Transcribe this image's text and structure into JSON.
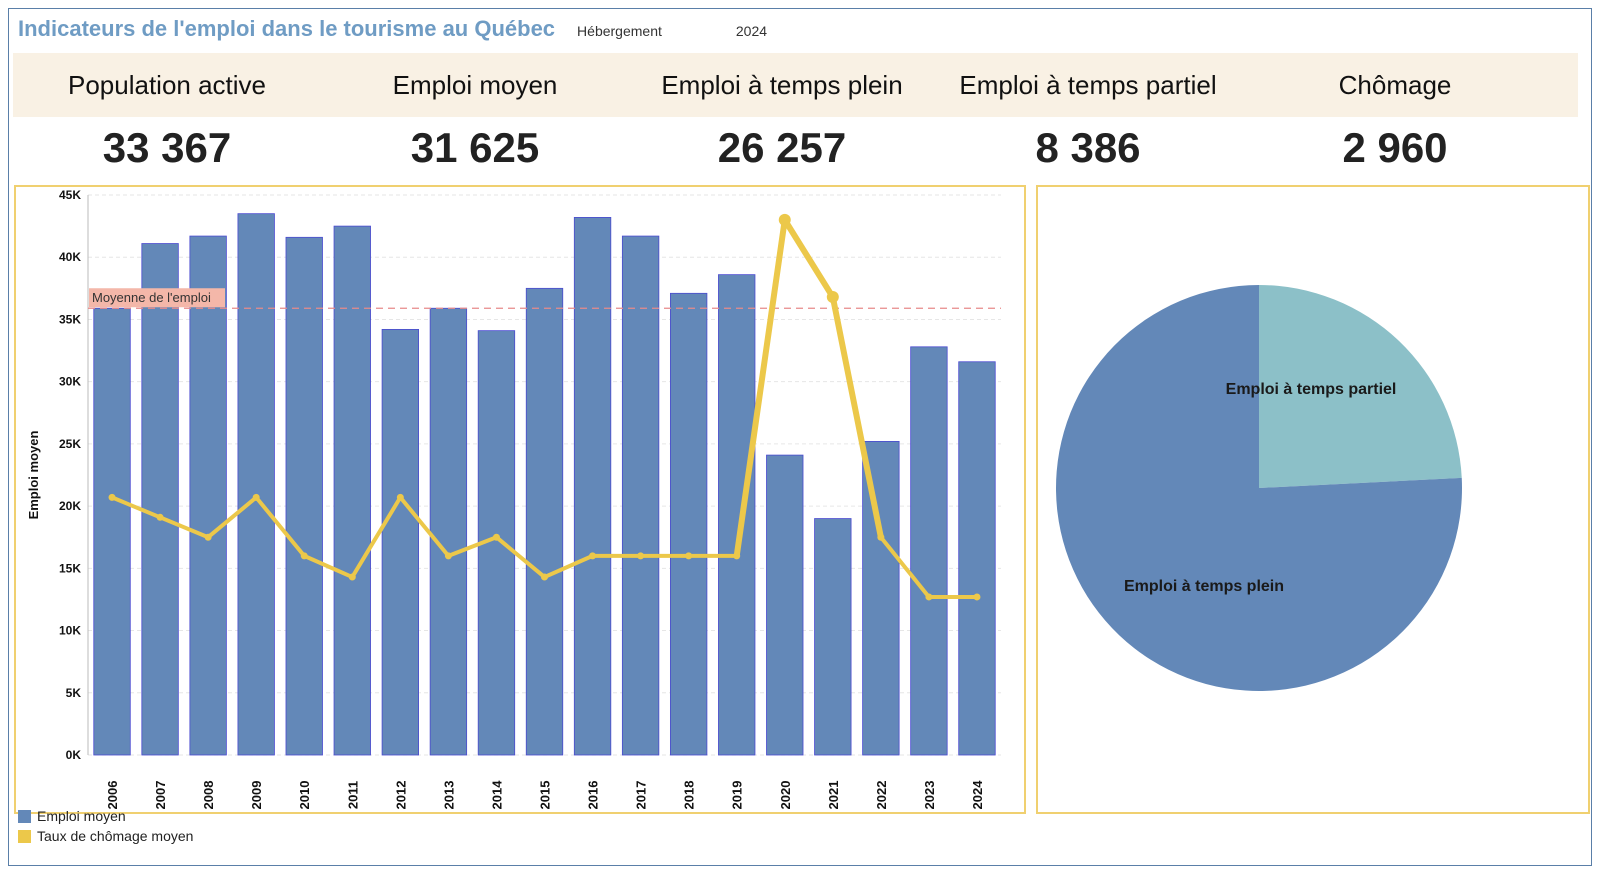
{
  "header": {
    "title": "Indicateurs de l'emploi dans le tourisme au Québec",
    "filter_sector": "Hébergement",
    "filter_year": "2024"
  },
  "kpis": [
    {
      "label": "Population active",
      "value": "33 367"
    },
    {
      "label": "Emploi moyen",
      "value": "31 625"
    },
    {
      "label": "Emploi à temps plein",
      "value": "26 257"
    },
    {
      "label": "Emploi à temps partiel",
      "value": "8 386"
    },
    {
      "label": "Chômage",
      "value": "2 960"
    }
  ],
  "colors": {
    "bar": "#6388b8",
    "bar_stroke": "#4a4ad0",
    "line": "#ecc84a",
    "reference": "#e88a8a",
    "reference_label_bg": "#f4b7a9",
    "pie_full": "#6388b8",
    "pie_part": "#8cc0c8",
    "panel_border": "#f0d070"
  },
  "chart_data": [
    {
      "type": "bar",
      "ylabel": "Emploi moyen",
      "xlabel": "",
      "ylim": [
        0,
        45000
      ],
      "yticks": [
        "0K",
        "5K",
        "10K",
        "15K",
        "20K",
        "25K",
        "30K",
        "35K",
        "40K",
        "45K"
      ],
      "categories": [
        "2006",
        "2007",
        "2008",
        "2009",
        "2010",
        "2011",
        "2012",
        "2013",
        "2014",
        "2015",
        "2016",
        "2017",
        "2018",
        "2019",
        "2020",
        "2021",
        "2022",
        "2023",
        "2024"
      ],
      "series": [
        {
          "name": "Emploi moyen",
          "type": "bar",
          "values": [
            35900,
            41100,
            41700,
            43500,
            41600,
            42500,
            34200,
            35900,
            34100,
            37500,
            43200,
            41700,
            37100,
            38600,
            24100,
            19000,
            25200,
            32800,
            31600
          ]
        },
        {
          "name": "Taux de chômage moyen",
          "type": "line",
          "values": [
            20700,
            19100,
            17500,
            20700,
            16000,
            14300,
            20700,
            16000,
            17500,
            14300,
            16000,
            16000,
            16000,
            16000,
            43000,
            36800,
            17500,
            12700,
            12700
          ]
        }
      ],
      "reference_line": {
        "label": "Moyenne de l'emploi",
        "value": 35900
      },
      "grid": true,
      "legend_placement": "bottom-left"
    },
    {
      "type": "pie",
      "categories": [
        "Emploi à temps partiel",
        "Emploi à temps plein"
      ],
      "values": [
        8386,
        26257
      ]
    }
  ]
}
